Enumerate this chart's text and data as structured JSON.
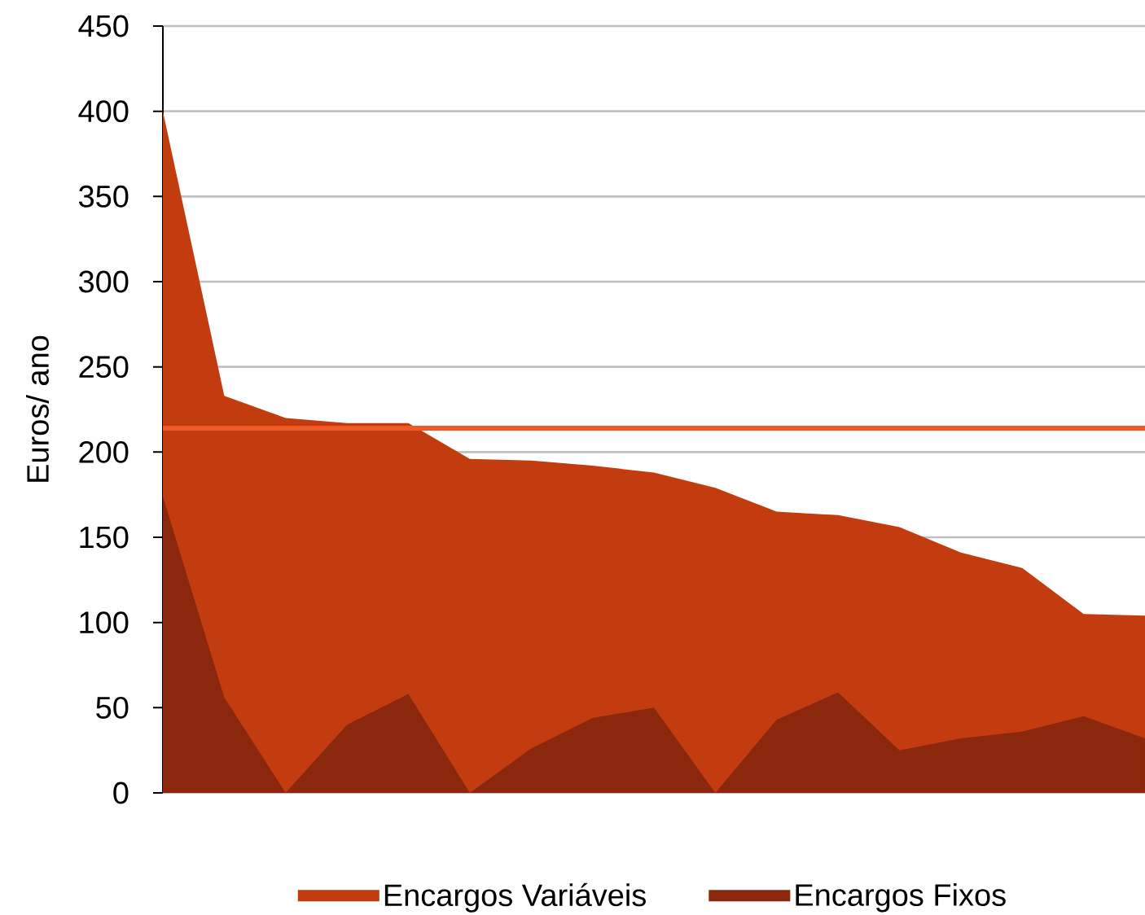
{
  "chart_data": {
    "type": "area",
    "categories": [
      null,
      null,
      null,
      null,
      null,
      null,
      null,
      null,
      null,
      null,
      null,
      null,
      null,
      null,
      null,
      null,
      null
    ],
    "series": [
      {
        "name": "Encargos Variáveis",
        "color": "#c33c10",
        "values": [
          400,
          233,
          220,
          217,
          217,
          196,
          195,
          192,
          188,
          179,
          165,
          163,
          156,
          141,
          132,
          105,
          104
        ]
      },
      {
        "name": "Encargos Fixos",
        "color": "#8b270c",
        "values": [
          174,
          56,
          0,
          40,
          58,
          0,
          26,
          44,
          50,
          0,
          43,
          59,
          25,
          32,
          36,
          45,
          32
        ]
      }
    ],
    "ylabel": "Euros/ ano",
    "ylim": [
      0,
      450
    ],
    "yticks": [
      0,
      50,
      100,
      150,
      200,
      250,
      300,
      350,
      400,
      450
    ],
    "grid": "y",
    "legend": "bottom",
    "tick_labels": "y",
    "ref_lines": [
      {
        "axis": "y",
        "value": 214,
        "color": "#f05a28"
      }
    ]
  }
}
